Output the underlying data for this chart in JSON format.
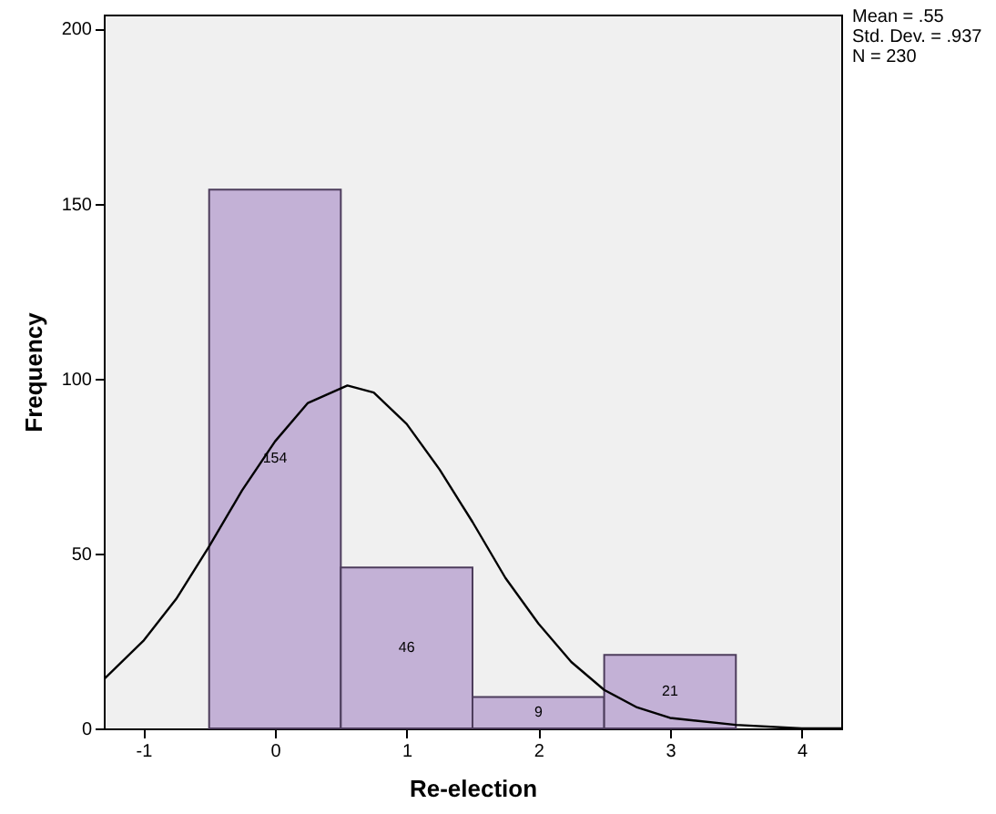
{
  "chart_data": {
    "type": "histogram",
    "xlabel": "Re-election",
    "ylabel": "Frequency",
    "bins": [
      -0.5,
      0.5,
      1.5,
      2.5,
      3.5
    ],
    "values": [
      154,
      46,
      9,
      21
    ],
    "color": "#c3b1d6",
    "value_labels": [
      "154",
      "46",
      "9",
      "21"
    ],
    "series": [
      {
        "type": "line",
        "color": "#000000",
        "x": [
          -1.3,
          -1,
          -0.75,
          -0.5,
          -0.25,
          0,
          0.25,
          0.55,
          0.75,
          1,
          1.25,
          1.5,
          1.75,
          2,
          2.25,
          2.5,
          2.75,
          3,
          3.5,
          4,
          4.3
        ],
        "values": [
          14,
          25,
          37,
          52,
          68,
          82,
          93,
          98,
          96,
          87,
          74,
          59,
          43,
          30,
          19,
          11,
          6,
          3,
          1,
          0,
          0
        ]
      }
    ],
    "xlim": [
      -1.3,
      4.3
    ],
    "xticks": [
      -1,
      0,
      1,
      2,
      3,
      4
    ],
    "ylim": [
      0,
      204
    ],
    "yticks": [
      0,
      50,
      100,
      150,
      200
    ],
    "annotations": [
      "Mean = .55",
      "Std. Dev. = .937",
      "N = 230"
    ]
  }
}
